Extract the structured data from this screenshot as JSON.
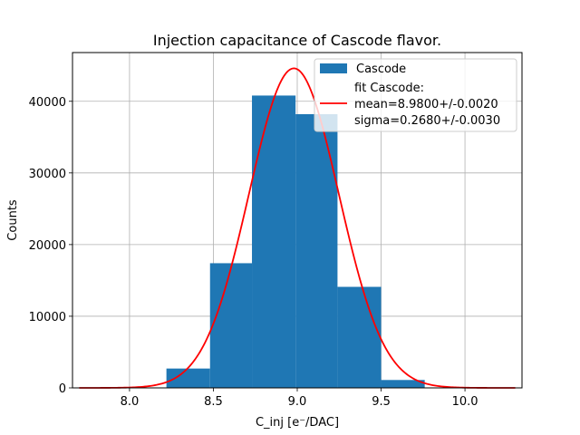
{
  "chart_data": {
    "type": "bar",
    "title": "Injection capacitance of Cascode flavor.",
    "xlabel": "C_inj [e⁻/DAC]",
    "ylabel": "Counts",
    "xlim": [
      7.66,
      10.34
    ],
    "ylim": [
      0,
      46800
    ],
    "xticks": [
      8.0,
      8.5,
      9.0,
      9.5,
      10.0
    ],
    "xtick_labels": [
      "8.0",
      "8.5",
      "9.0",
      "9.5",
      "10.0"
    ],
    "yticks": [
      0,
      10000,
      20000,
      30000,
      40000
    ],
    "ytick_labels": [
      "0",
      "10000",
      "20000",
      "30000",
      "40000"
    ],
    "grid": true,
    "legend_position": "top-right",
    "histogram": {
      "name": "Cascode",
      "color": "#1f77b4",
      "bins": [
        {
          "x0": 8.22,
          "x1": 8.48,
          "count": 2700
        },
        {
          "x0": 8.48,
          "x1": 8.73,
          "count": 17400
        },
        {
          "x0": 8.73,
          "x1": 8.99,
          "count": 40800
        },
        {
          "x0": 8.99,
          "x1": 9.24,
          "count": 38200
        },
        {
          "x0": 9.24,
          "x1": 9.5,
          "count": 14100
        },
        {
          "x0": 9.5,
          "x1": 9.76,
          "count": 1100
        }
      ]
    },
    "fit": {
      "name_lines": [
        "fit Cascode:",
        "mean=8.9800+/-0.0020",
        "sigma=0.2680+/-0.0030"
      ],
      "color": "#ff0000",
      "type": "gaussian",
      "mean": 8.98,
      "sigma": 0.268,
      "amplitude": 44600,
      "x_range": [
        7.7,
        10.3
      ]
    }
  }
}
